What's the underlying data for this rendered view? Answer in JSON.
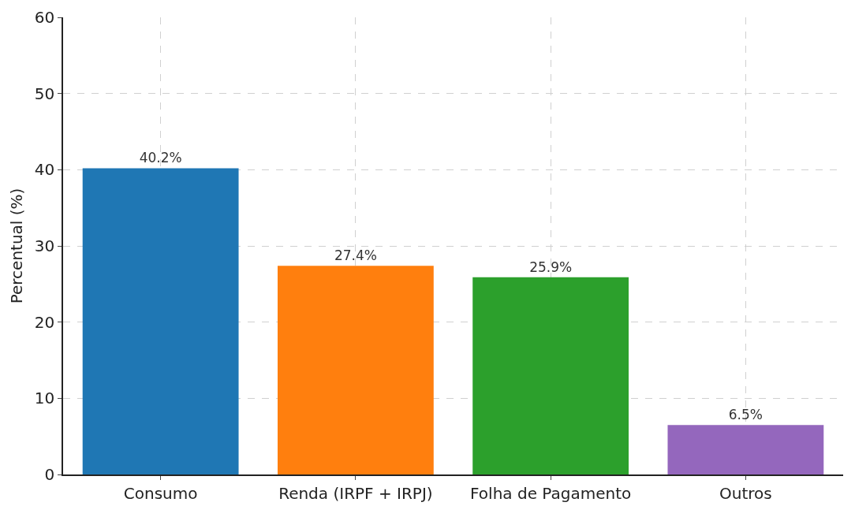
{
  "chart_data": {
    "type": "bar",
    "ylabel": "Percentual (%)",
    "categories": [
      "Consumo",
      "Renda (IRPF + IRPJ)",
      "Folha de Pagamento",
      "Outros"
    ],
    "values": [
      40.2,
      27.4,
      25.9,
      6.5
    ],
    "colors": [
      "#1f77b4",
      "#ff7f0e",
      "#2ca02c",
      "#9467bd"
    ],
    "value_labels": [
      "40.2%",
      "27.4%",
      "25.9%",
      "6.5%"
    ],
    "ylim": [
      0,
      60
    ],
    "yticks": [
      0,
      10,
      20,
      30,
      40,
      50,
      60
    ],
    "grid": true
  }
}
